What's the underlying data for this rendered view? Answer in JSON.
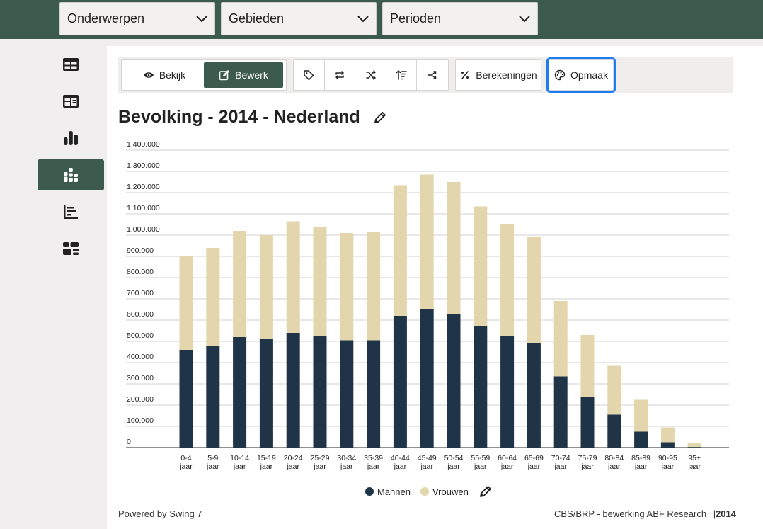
{
  "filters": {
    "onderwerpen": "Onderwerpen",
    "gebieden": "Gebieden",
    "perioden": "Perioden"
  },
  "sidebar": {
    "items": [
      {
        "name": "table-view",
        "icon": "table-icon"
      },
      {
        "name": "card-view",
        "icon": "card-table-icon"
      },
      {
        "name": "bar-chart-view",
        "icon": "bar-chart-icon"
      },
      {
        "name": "stacked-bar-view",
        "icon": "stacked-bar-icon",
        "active": true
      },
      {
        "name": "list-chart-view",
        "icon": "list-chart-icon"
      },
      {
        "name": "dashboard-view",
        "icon": "dashboard-icon"
      }
    ]
  },
  "toolbar": {
    "view_label": "Bekijk",
    "edit_label": "Bewerk",
    "calculations_label": "Berekeningen",
    "format_label": "Opmaak",
    "icon_buttons": [
      "tag-icon",
      "swap-icon",
      "shuffle-icon",
      "sort-icon",
      "split-icon"
    ]
  },
  "title": "Bevolking - 2014 - Nederland",
  "colors": {
    "brand": "#3d5a4e",
    "mannen": "#1f3547",
    "vrouwen": "#e3d5ac",
    "focus": "#1e7cf2"
  },
  "chart_data": {
    "type": "bar",
    "stacked": true,
    "categories": [
      "0-4 jaar",
      "5-9 jaar",
      "10-14 jaar",
      "15-19 jaar",
      "20-24 jaar",
      "25-29 jaar",
      "30-34 jaar",
      "35-39 jaar",
      "40-44 jaar",
      "45-49 jaar",
      "50-54 jaar",
      "55-59 jaar",
      "60-64 jaar",
      "65-69 jaar",
      "70-74 jaar",
      "75-79 jaar",
      "80-84 jaar",
      "85-89 jaar",
      "90-95 jaar",
      "95+ jaar"
    ],
    "series": [
      {
        "name": "Mannen",
        "values": [
          460000,
          480000,
          520000,
          510000,
          540000,
          525000,
          505000,
          505000,
          620000,
          650000,
          630000,
          570000,
          525000,
          490000,
          335000,
          240000,
          155000,
          75000,
          25000,
          3000
        ]
      },
      {
        "name": "Vrouwen",
        "values": [
          440000,
          460000,
          500000,
          490000,
          525000,
          515000,
          505000,
          510000,
          615000,
          635000,
          620000,
          565000,
          525000,
          500000,
          355000,
          290000,
          230000,
          150000,
          70000,
          17000
        ]
      }
    ],
    "ylim": [
      0,
      1400000
    ],
    "yticks": [
      "0",
      "100.000",
      "200.000",
      "300.000",
      "400.000",
      "500.000",
      "600.000",
      "700.000",
      "800.000",
      "900.000",
      "1.000.000",
      "1.100.000",
      "1.200.000",
      "1.300.000",
      "1.400.000"
    ],
    "legend_position": "bottom",
    "grid": true
  },
  "legend": {
    "mannen_label": "Mannen",
    "vrouwen_label": "Vrouwen"
  },
  "footer": {
    "powered_by": "Powered by Swing 7",
    "source": "CBS/BRP - bewerking ABF Research",
    "year": "2014"
  }
}
